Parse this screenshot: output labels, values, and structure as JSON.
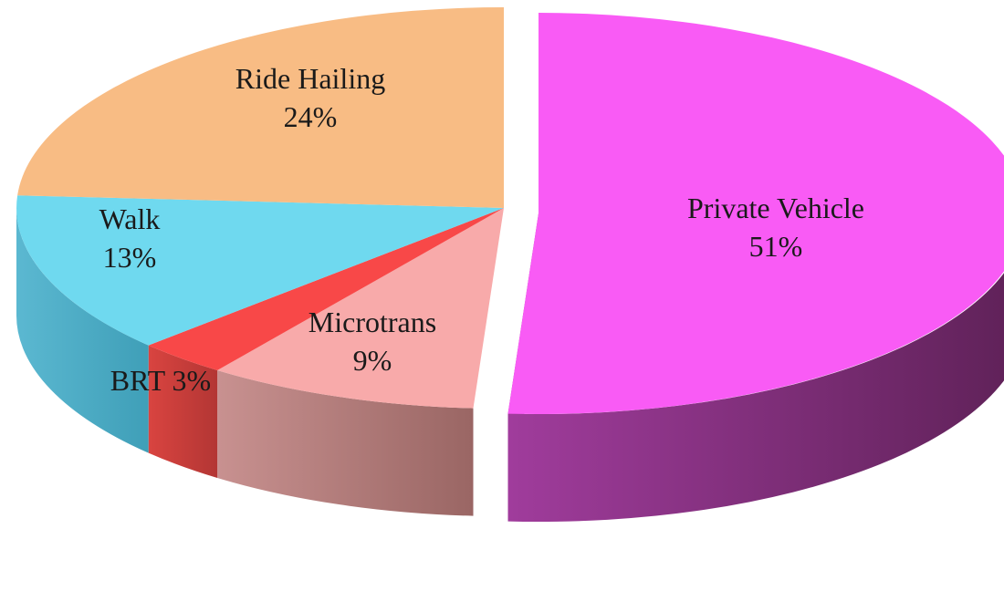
{
  "chart_data": {
    "type": "pie",
    "style": "3d-exploded",
    "title": "",
    "start_angle_deg": 0,
    "direction": "clockwise",
    "slices": [
      {
        "label": "Private Vehicle",
        "value": 51,
        "pct": "51%",
        "label_lines": [
          "Private Vehicle",
          "51%"
        ],
        "color": "#F95BF5",
        "side_dark": "#5E2157",
        "side_light": "#A03C9C",
        "exploded": true
      },
      {
        "label": "Microtrans",
        "value": 9,
        "pct": "9%",
        "label_lines": [
          "Microtrans",
          "9%"
        ],
        "color": "#F8AAAA",
        "side_dark": "#9A6664",
        "side_light": "#C89190",
        "exploded": false
      },
      {
        "label": "BRT",
        "value": 3,
        "pct": "3%",
        "label_lines": [
          "BRT 3%"
        ],
        "color": "#F84848",
        "side_dark": "#B33634",
        "side_light": "#D94440",
        "exploded": false
      },
      {
        "label": "Walk",
        "value": 13,
        "pct": "13%",
        "label_lines": [
          "Walk",
          "13%"
        ],
        "color": "#6FD9EF",
        "side_dark": "#3F9FB8",
        "side_light": "#5BB8D1",
        "exploded": false
      },
      {
        "label": "Ride Hailing",
        "value": 24,
        "pct": "24%",
        "label_lines": [
          "Ride Hailing",
          "24%"
        ],
        "color": "#F8BC84",
        "side_dark": "#B6875E",
        "side_light": "#D9A474",
        "exploded": false
      }
    ]
  }
}
